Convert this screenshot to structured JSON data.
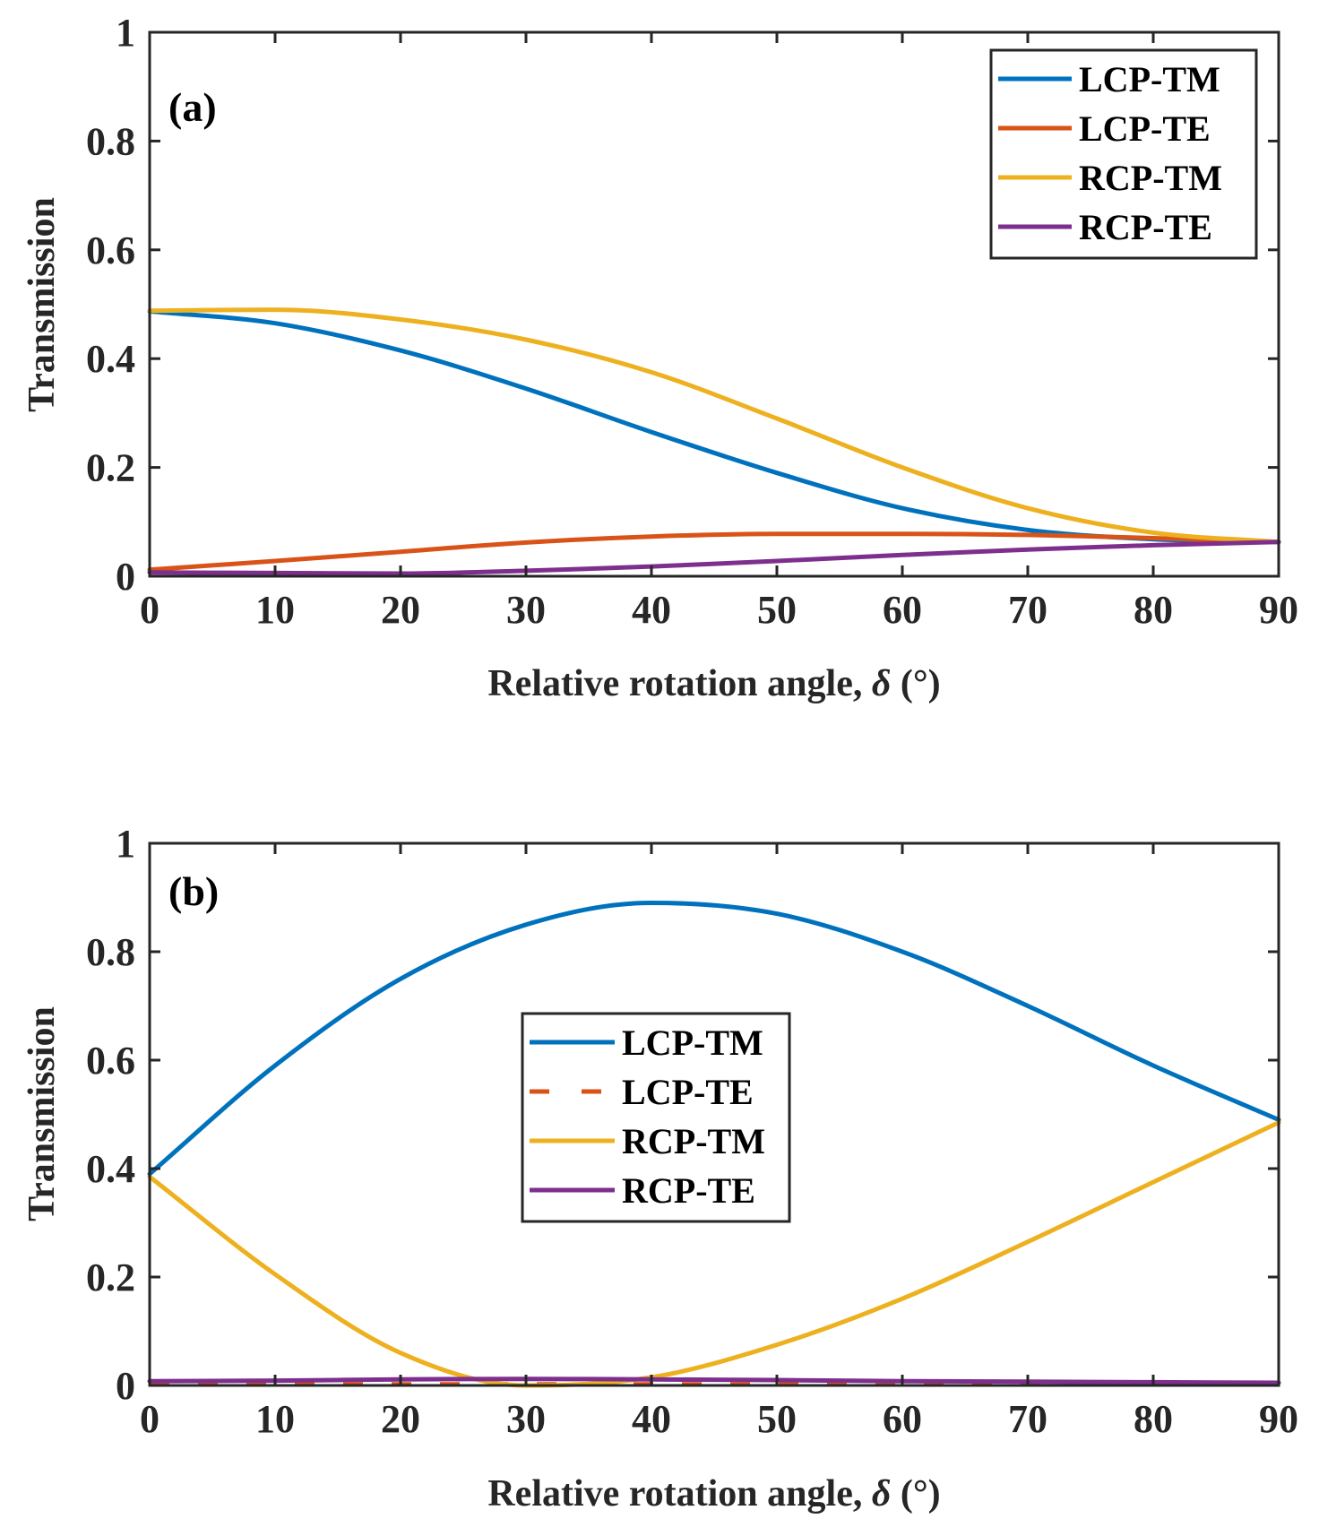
{
  "chart_data": [
    {
      "type": "line",
      "panel_label": "(a)",
      "xlabel_main": "Relative rotation angle, ",
      "xlabel_symbol": "δ",
      "xlabel_unit": " (°)",
      "ylabel": "Transmission",
      "xlim": [
        0,
        90
      ],
      "ylim": [
        0,
        1
      ],
      "xticks": [
        0,
        10,
        20,
        30,
        40,
        50,
        60,
        70,
        80,
        90
      ],
      "yticks": [
        0,
        0.2,
        0.4,
        0.6,
        0.8,
        1
      ],
      "ytick_labels": [
        "0",
        "0.2",
        "0.4",
        "0.6",
        "0.8",
        "1"
      ],
      "grid": false,
      "legend_position": "top-right",
      "x": [
        0,
        10,
        20,
        30,
        40,
        50,
        60,
        70,
        80,
        90
      ],
      "series": [
        {
          "name": "LCP-TM",
          "color": "#0072BD",
          "dash": "solid",
          "values": [
            0.487,
            0.465,
            0.415,
            0.345,
            0.265,
            0.19,
            0.125,
            0.085,
            0.068,
            0.063
          ]
        },
        {
          "name": "LCP-TE",
          "color": "#D95319",
          "dash": "solid",
          "values": [
            0.012,
            0.028,
            0.045,
            0.062,
            0.073,
            0.078,
            0.078,
            0.076,
            0.07,
            0.063
          ]
        },
        {
          "name": "RCP-TM",
          "color": "#EDB120",
          "dash": "solid",
          "values": [
            0.488,
            0.49,
            0.472,
            0.435,
            0.375,
            0.29,
            0.2,
            0.125,
            0.08,
            0.063
          ]
        },
        {
          "name": "RCP-TE",
          "color": "#7E2F8E",
          "dash": "solid",
          "values": [
            0.007,
            0.006,
            0.005,
            0.01,
            0.018,
            0.028,
            0.039,
            0.049,
            0.057,
            0.063
          ]
        }
      ]
    },
    {
      "type": "line",
      "panel_label": "(b)",
      "xlabel_main": "Relative rotation angle, ",
      "xlabel_symbol": "δ",
      "xlabel_unit": " (°)",
      "ylabel": "Transmission",
      "xlim": [
        0,
        90
      ],
      "ylim": [
        0,
        1
      ],
      "xticks": [
        0,
        10,
        20,
        30,
        40,
        50,
        60,
        70,
        80,
        90
      ],
      "yticks": [
        0,
        0.2,
        0.4,
        0.6,
        0.8,
        1
      ],
      "ytick_labels": [
        "0",
        "0.2",
        "0.4",
        "0.6",
        "0.8",
        "1"
      ],
      "grid": false,
      "legend_position": "center-left",
      "x": [
        0,
        10,
        20,
        30,
        40,
        50,
        60,
        70,
        80,
        90
      ],
      "series": [
        {
          "name": "LCP-TM",
          "color": "#0072BD",
          "dash": "solid",
          "values": [
            0.39,
            0.59,
            0.75,
            0.85,
            0.89,
            0.87,
            0.8,
            0.7,
            0.59,
            0.49
          ]
        },
        {
          "name": "LCP-TE",
          "color": "#D95319",
          "dash": "dashed",
          "values": [
            0.002,
            0.002,
            0.002,
            0.002,
            0.002,
            0.002,
            0.002,
            0.002,
            0.002,
            0.002
          ]
        },
        {
          "name": "RCP-TM",
          "color": "#EDB120",
          "dash": "solid",
          "values": [
            0.385,
            0.205,
            0.06,
            0.0,
            0.015,
            0.075,
            0.16,
            0.265,
            0.375,
            0.485
          ]
        },
        {
          "name": "RCP-TE",
          "color": "#7E2F8E",
          "dash": "solid",
          "values": [
            0.008,
            0.009,
            0.011,
            0.012,
            0.011,
            0.01,
            0.008,
            0.007,
            0.006,
            0.005
          ]
        }
      ]
    }
  ]
}
